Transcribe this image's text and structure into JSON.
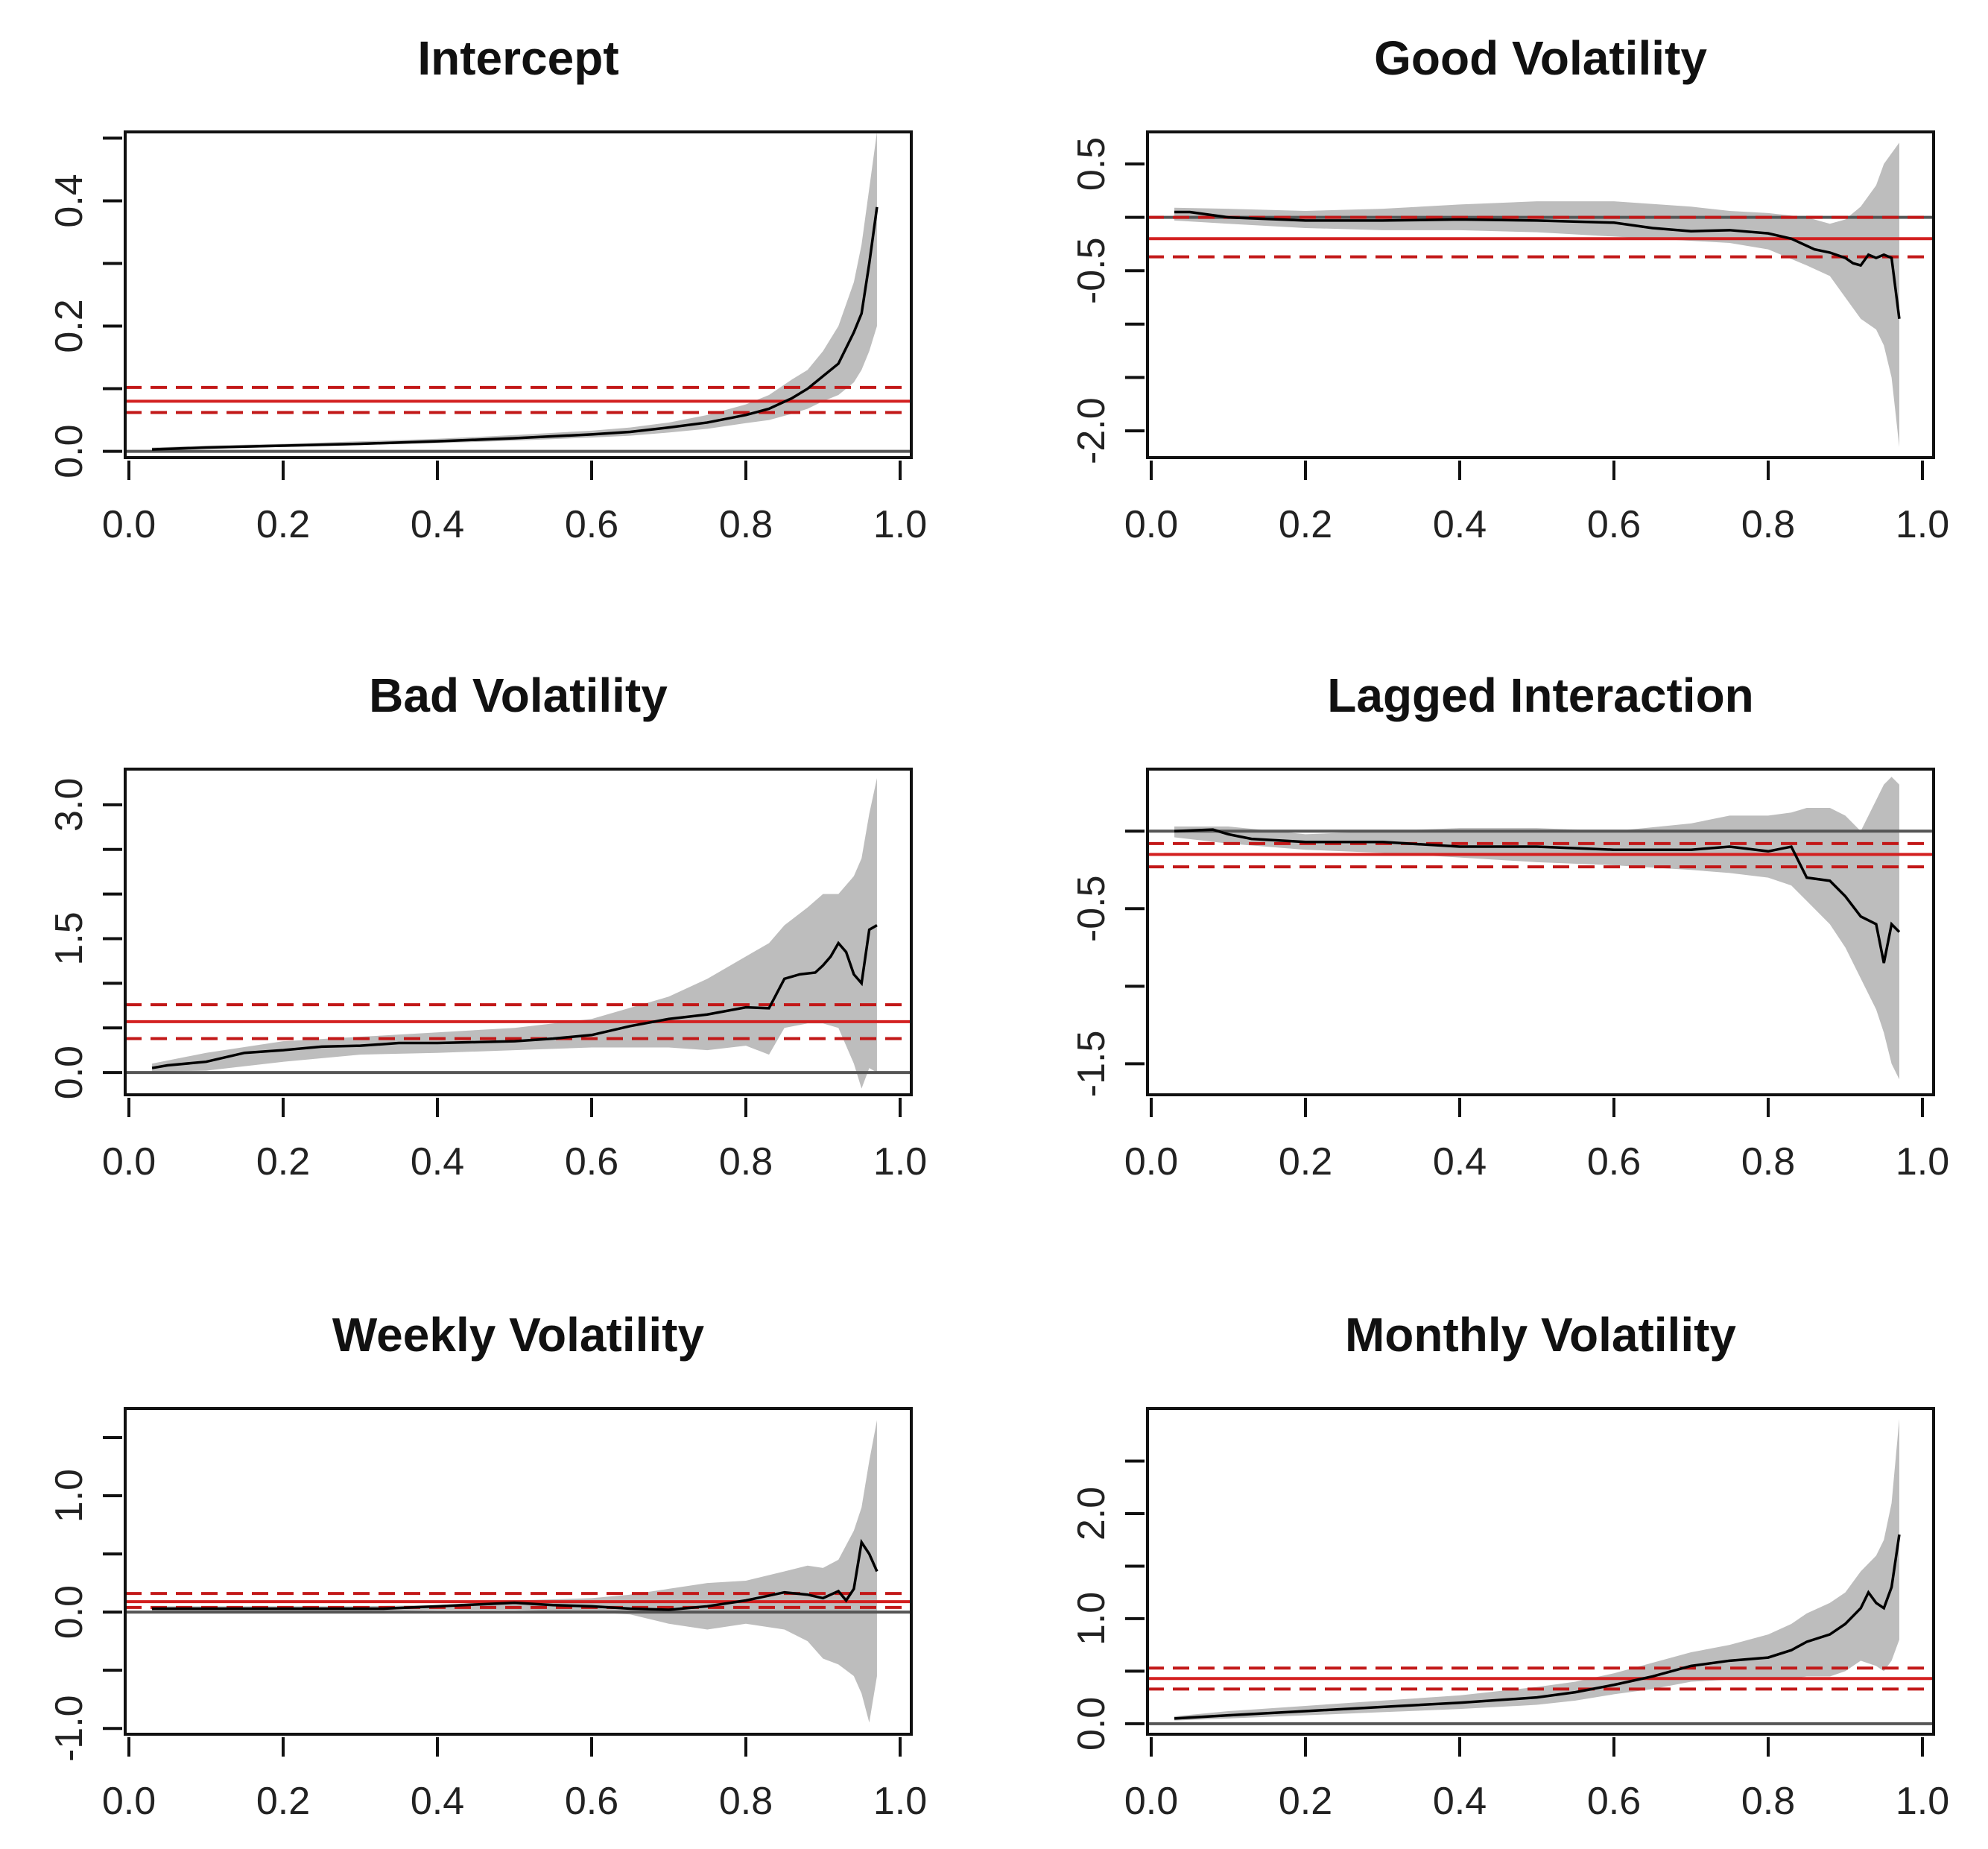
{
  "chart_data": [
    {
      "type": "line",
      "title": "Intercept",
      "xlim": [
        0,
        1
      ],
      "ylim": [
        -0.01,
        0.51
      ],
      "x_ticks": [
        "0.0",
        "0.2",
        "0.4",
        "0.6",
        "0.8",
        "1.0"
      ],
      "y_tick_values": [
        0,
        0.1,
        0.2,
        0.3,
        0.4,
        0.5
      ],
      "y_tick_labels": [
        {
          "value": 0,
          "label": "0.0"
        },
        {
          "value": 0.2,
          "label": "0.2"
        },
        {
          "value": 0.4,
          "label": "0.4"
        }
      ],
      "zero_line": 0,
      "ols_estimate": 0.08,
      "ols_band": [
        0.062,
        0.102
      ],
      "series": [
        {
          "name": "quantile_coefficient",
          "x": [
            0.03,
            0.1,
            0.2,
            0.3,
            0.4,
            0.5,
            0.6,
            0.65,
            0.7,
            0.75,
            0.8,
            0.83,
            0.86,
            0.88,
            0.9,
            0.92,
            0.94,
            0.95,
            0.96,
            0.97
          ],
          "y": [
            0.003,
            0.006,
            0.009,
            0.012,
            0.016,
            0.021,
            0.027,
            0.031,
            0.038,
            0.046,
            0.058,
            0.068,
            0.085,
            0.1,
            0.12,
            0.14,
            0.19,
            0.22,
            0.3,
            0.39
          ]
        }
      ],
      "confidence_band": {
        "x": [
          0.03,
          0.1,
          0.2,
          0.3,
          0.4,
          0.5,
          0.6,
          0.65,
          0.7,
          0.75,
          0.8,
          0.83,
          0.86,
          0.88,
          0.9,
          0.92,
          0.94,
          0.95,
          0.96,
          0.97
        ],
        "lower": [
          0.001,
          0.004,
          0.007,
          0.01,
          0.013,
          0.017,
          0.022,
          0.025,
          0.03,
          0.036,
          0.045,
          0.05,
          0.06,
          0.068,
          0.08,
          0.09,
          0.11,
          0.13,
          0.16,
          0.2
        ],
        "upper": [
          0.006,
          0.009,
          0.012,
          0.016,
          0.02,
          0.026,
          0.033,
          0.038,
          0.046,
          0.058,
          0.075,
          0.09,
          0.115,
          0.13,
          0.16,
          0.2,
          0.27,
          0.33,
          0.42,
          0.51
        ]
      }
    },
    {
      "type": "line",
      "title": "Good Volatility",
      "xlim": [
        0,
        1
      ],
      "ylim": [
        -2.25,
        0.8
      ],
      "x_ticks": [
        "0.0",
        "0.2",
        "0.4",
        "0.6",
        "0.8",
        "1.0"
      ],
      "y_tick_values": [
        0.5,
        0,
        -0.5,
        -1.0,
        -1.5,
        -2.0
      ],
      "y_tick_labels": [
        {
          "value": 0.5,
          "label": "0.5"
        },
        {
          "value": -0.5,
          "label": "-0.5"
        },
        {
          "value": -2.0,
          "label": "-2.0"
        }
      ],
      "zero_line": 0,
      "ols_estimate": -0.2,
      "ols_band": [
        -0.37,
        0.0
      ],
      "series": [
        {
          "name": "quantile_coefficient",
          "x": [
            0.03,
            0.05,
            0.1,
            0.2,
            0.3,
            0.4,
            0.5,
            0.6,
            0.65,
            0.7,
            0.75,
            0.8,
            0.83,
            0.86,
            0.88,
            0.9,
            0.91,
            0.92,
            0.93,
            0.94,
            0.95,
            0.96,
            0.97
          ],
          "y": [
            0.05,
            0.05,
            0.0,
            -0.03,
            -0.03,
            -0.02,
            -0.03,
            -0.05,
            -0.1,
            -0.13,
            -0.12,
            -0.15,
            -0.2,
            -0.3,
            -0.33,
            -0.38,
            -0.43,
            -0.45,
            -0.35,
            -0.38,
            -0.35,
            -0.38,
            -0.95
          ]
        }
      ],
      "confidence_band": {
        "x": [
          0.03,
          0.1,
          0.2,
          0.3,
          0.4,
          0.5,
          0.6,
          0.7,
          0.75,
          0.8,
          0.85,
          0.88,
          0.9,
          0.92,
          0.94,
          0.95,
          0.96,
          0.97
        ],
        "lower": [
          -0.03,
          -0.06,
          -0.1,
          -0.12,
          -0.12,
          -0.14,
          -0.18,
          -0.22,
          -0.24,
          -0.3,
          -0.45,
          -0.55,
          -0.75,
          -0.95,
          -1.05,
          -1.2,
          -1.5,
          -2.15
        ],
        "upper": [
          0.09,
          0.08,
          0.06,
          0.08,
          0.12,
          0.15,
          0.15,
          0.1,
          0.06,
          0.04,
          0.0,
          -0.06,
          -0.02,
          0.1,
          0.3,
          0.5,
          0.6,
          0.7
        ]
      }
    },
    {
      "type": "line",
      "title": "Bad Volatility",
      "xlim": [
        0,
        1
      ],
      "ylim": [
        -0.25,
        3.4
      ],
      "x_ticks": [
        "0.0",
        "0.2",
        "0.4",
        "0.6",
        "0.8",
        "1.0"
      ],
      "y_tick_values": [
        0,
        0.5,
        1.0,
        1.5,
        2.0,
        2.5,
        3.0
      ],
      "y_tick_labels": [
        {
          "value": 0,
          "label": "0.0"
        },
        {
          "value": 1.5,
          "label": "1.5"
        },
        {
          "value": 3.0,
          "label": "3.0"
        }
      ],
      "zero_line": 0,
      "ols_estimate": 0.57,
      "ols_band": [
        0.38,
        0.76
      ],
      "series": [
        {
          "name": "quantile_coefficient",
          "x": [
            0.03,
            0.05,
            0.1,
            0.15,
            0.2,
            0.25,
            0.3,
            0.35,
            0.4,
            0.45,
            0.5,
            0.55,
            0.6,
            0.65,
            0.7,
            0.75,
            0.8,
            0.83,
            0.85,
            0.87,
            0.89,
            0.9,
            0.91,
            0.92,
            0.93,
            0.94,
            0.95,
            0.96,
            0.97
          ],
          "y": [
            0.05,
            0.08,
            0.12,
            0.22,
            0.25,
            0.29,
            0.3,
            0.33,
            0.33,
            0.34,
            0.35,
            0.38,
            0.42,
            0.52,
            0.6,
            0.65,
            0.73,
            0.72,
            1.05,
            1.1,
            1.12,
            1.2,
            1.3,
            1.45,
            1.35,
            1.1,
            1.0,
            1.6,
            1.65
          ]
        }
      ],
      "confidence_band": {
        "x": [
          0.03,
          0.1,
          0.2,
          0.3,
          0.4,
          0.5,
          0.6,
          0.7,
          0.75,
          0.8,
          0.83,
          0.85,
          0.88,
          0.9,
          0.92,
          0.94,
          0.95,
          0.96,
          0.97
        ],
        "lower": [
          0.01,
          0.02,
          0.12,
          0.2,
          0.22,
          0.25,
          0.28,
          0.28,
          0.25,
          0.3,
          0.2,
          0.5,
          0.55,
          0.55,
          0.5,
          0.1,
          -0.18,
          0.05,
          0.0
        ],
        "upper": [
          0.1,
          0.22,
          0.35,
          0.4,
          0.45,
          0.5,
          0.6,
          0.85,
          1.05,
          1.3,
          1.45,
          1.65,
          1.85,
          2.0,
          2.0,
          2.2,
          2.4,
          2.9,
          3.3
        ]
      }
    },
    {
      "type": "line",
      "title": "Lagged Interaction",
      "xlim": [
        0,
        1
      ],
      "ylim": [
        -1.7,
        0.4
      ],
      "x_ticks": [
        "0.0",
        "0.2",
        "0.4",
        "0.6",
        "0.8",
        "1.0"
      ],
      "y_tick_values": [
        0,
        -0.5,
        -1.0,
        -1.5
      ],
      "y_tick_labels": [
        {
          "value": -0.5,
          "label": "-0.5"
        },
        {
          "value": -1.5,
          "label": "-1.5"
        }
      ],
      "zero_line": 0,
      "ols_estimate": -0.15,
      "ols_band": [
        -0.23,
        -0.08
      ],
      "series": [
        {
          "name": "quantile_coefficient",
          "x": [
            0.03,
            0.08,
            0.1,
            0.13,
            0.2,
            0.3,
            0.4,
            0.5,
            0.6,
            0.7,
            0.75,
            0.8,
            0.83,
            0.85,
            0.88,
            0.9,
            0.92,
            0.94,
            0.95,
            0.96,
            0.97
          ],
          "y": [
            0.0,
            0.01,
            -0.02,
            -0.05,
            -0.07,
            -0.07,
            -0.1,
            -0.1,
            -0.12,
            -0.12,
            -0.1,
            -0.13,
            -0.1,
            -0.3,
            -0.32,
            -0.42,
            -0.55,
            -0.6,
            -0.85,
            -0.6,
            -0.65
          ]
        }
      ],
      "confidence_band": {
        "x": [
          0.03,
          0.1,
          0.2,
          0.3,
          0.4,
          0.5,
          0.6,
          0.7,
          0.75,
          0.8,
          0.83,
          0.85,
          0.88,
          0.9,
          0.92,
          0.94,
          0.95,
          0.96,
          0.97
        ],
        "lower": [
          -0.04,
          -0.08,
          -0.12,
          -0.14,
          -0.17,
          -0.2,
          -0.22,
          -0.25,
          -0.27,
          -0.3,
          -0.35,
          -0.45,
          -0.6,
          -0.75,
          -0.95,
          -1.15,
          -1.3,
          -1.5,
          -1.6
        ],
        "upper": [
          0.03,
          0.03,
          -0.02,
          0.0,
          0.02,
          0.02,
          0.0,
          0.05,
          0.1,
          0.1,
          0.12,
          0.15,
          0.15,
          0.1,
          0.0,
          0.2,
          0.3,
          0.35,
          0.3
        ]
      }
    },
    {
      "type": "line",
      "title": "Weekly Volatility",
      "xlim": [
        0,
        1
      ],
      "ylim": [
        -1.05,
        1.75
      ],
      "x_ticks": [
        "0.0",
        "0.2",
        "0.4",
        "0.6",
        "0.8",
        "1.0"
      ],
      "y_tick_values": [
        1.5,
        1.0,
        0.5,
        0,
        -0.5,
        -1.0
      ],
      "y_tick_labels": [
        {
          "value": 1.0,
          "label": "1.0"
        },
        {
          "value": 0,
          "label": "0.0"
        },
        {
          "value": -1.0,
          "label": "-1.0"
        }
      ],
      "zero_line": 0,
      "ols_estimate": 0.09,
      "ols_band": [
        0.04,
        0.16
      ],
      "series": [
        {
          "name": "quantile_coefficient",
          "x": [
            0.03,
            0.1,
            0.2,
            0.3,
            0.33,
            0.4,
            0.5,
            0.55,
            0.6,
            0.65,
            0.7,
            0.75,
            0.8,
            0.85,
            0.88,
            0.9,
            0.92,
            0.93,
            0.94,
            0.95,
            0.96,
            0.97
          ],
          "y": [
            0.03,
            0.03,
            0.03,
            0.03,
            0.03,
            0.05,
            0.08,
            0.06,
            0.05,
            0.03,
            0.02,
            0.05,
            0.1,
            0.17,
            0.15,
            0.12,
            0.18,
            0.1,
            0.2,
            0.6,
            0.5,
            0.35
          ]
        }
      ],
      "confidence_band": {
        "x": [
          0.03,
          0.1,
          0.2,
          0.3,
          0.4,
          0.5,
          0.6,
          0.65,
          0.7,
          0.75,
          0.8,
          0.85,
          0.88,
          0.9,
          0.92,
          0.94,
          0.95,
          0.96,
          0.97
        ],
        "lower": [
          0.01,
          0.01,
          0.01,
          0.01,
          0.02,
          0.02,
          0.0,
          -0.02,
          -0.1,
          -0.15,
          -0.1,
          -0.15,
          -0.25,
          -0.4,
          -0.45,
          -0.55,
          -0.7,
          -0.95,
          -0.55
        ],
        "upper": [
          0.05,
          0.05,
          0.05,
          0.05,
          0.06,
          0.1,
          0.12,
          0.15,
          0.2,
          0.25,
          0.27,
          0.35,
          0.4,
          0.38,
          0.45,
          0.7,
          0.9,
          1.3,
          1.65
        ]
      }
    },
    {
      "type": "line",
      "title": "Monthly Volatility",
      "xlim": [
        0,
        1
      ],
      "ylim": [
        -0.1,
        3.0
      ],
      "x_ticks": [
        "0.0",
        "0.2",
        "0.4",
        "0.6",
        "0.8",
        "1.0"
      ],
      "y_tick_values": [
        0,
        0.5,
        1.0,
        1.5,
        2.0,
        2.5
      ],
      "y_tick_labels": [
        {
          "value": 0,
          "label": "0.0"
        },
        {
          "value": 1.0,
          "label": "1.0"
        },
        {
          "value": 2.0,
          "label": "2.0"
        }
      ],
      "zero_line": 0,
      "ols_estimate": 0.43,
      "ols_band": [
        0.33,
        0.53
      ],
      "series": [
        {
          "name": "quantile_coefficient",
          "x": [
            0.03,
            0.1,
            0.2,
            0.3,
            0.4,
            0.5,
            0.55,
            0.6,
            0.65,
            0.7,
            0.75,
            0.8,
            0.83,
            0.85,
            0.88,
            0.9,
            0.92,
            0.93,
            0.94,
            0.95,
            0.96,
            0.97
          ],
          "y": [
            0.05,
            0.08,
            0.12,
            0.16,
            0.2,
            0.25,
            0.3,
            0.37,
            0.45,
            0.55,
            0.6,
            0.63,
            0.7,
            0.78,
            0.85,
            0.95,
            1.1,
            1.25,
            1.15,
            1.1,
            1.3,
            1.8
          ]
        }
      ],
      "confidence_band": {
        "x": [
          0.03,
          0.1,
          0.2,
          0.3,
          0.4,
          0.5,
          0.55,
          0.6,
          0.65,
          0.7,
          0.75,
          0.8,
          0.83,
          0.85,
          0.88,
          0.9,
          0.92,
          0.94,
          0.95,
          0.96,
          0.97
        ],
        "lower": [
          0.03,
          0.05,
          0.08,
          0.11,
          0.14,
          0.18,
          0.22,
          0.28,
          0.33,
          0.4,
          0.42,
          0.42,
          0.43,
          0.45,
          0.45,
          0.5,
          0.6,
          0.55,
          0.5,
          0.6,
          0.8
        ],
        "upper": [
          0.07,
          0.12,
          0.17,
          0.22,
          0.27,
          0.35,
          0.4,
          0.48,
          0.58,
          0.68,
          0.75,
          0.85,
          0.95,
          1.05,
          1.15,
          1.25,
          1.45,
          1.6,
          1.75,
          2.1,
          2.9
        ]
      }
    }
  ]
}
